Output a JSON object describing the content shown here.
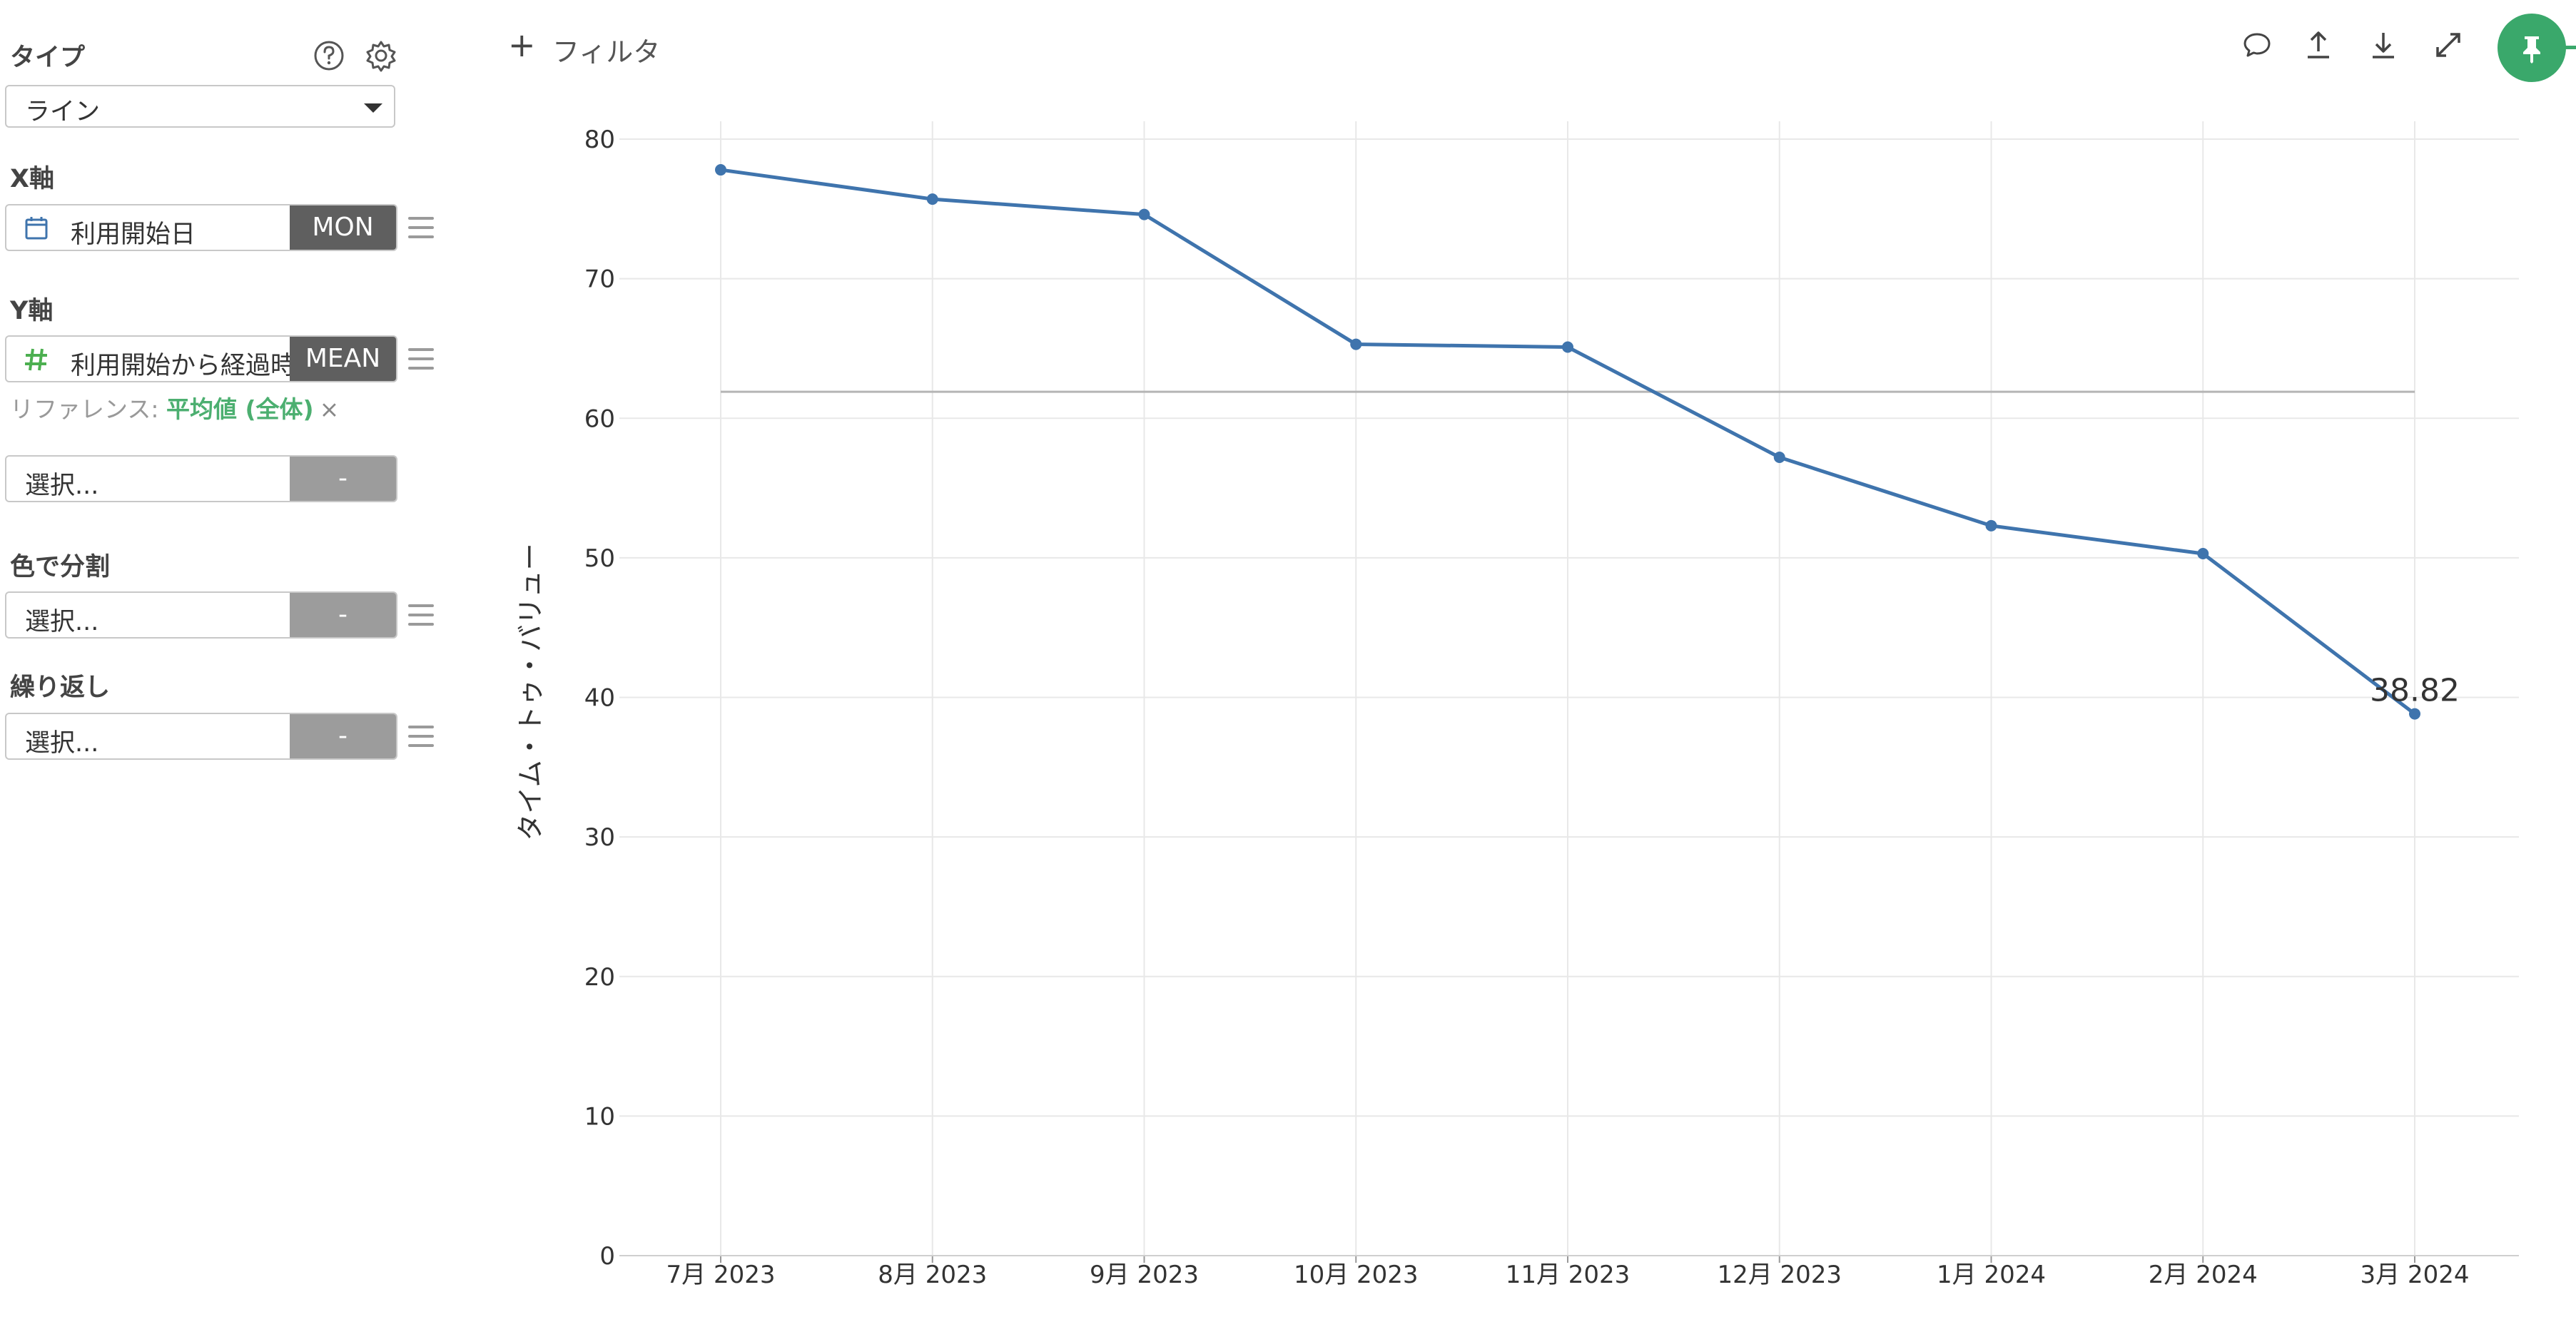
{
  "sidebar": {
    "type_label": "タイプ",
    "chart_type_value": "ライン",
    "x_axis_label": "X軸",
    "x_field": "利用開始日",
    "x_agg": "MON",
    "y_axis_label": "Y軸",
    "y_field": "利用開始から経過時",
    "y_agg": "MEAN",
    "reference_prefix": "リファレンス: ",
    "reference_value": "平均値 (全体)",
    "reference_remove": "×",
    "extra_select_placeholder": "選択...",
    "extra_select_agg": "-",
    "color_split_label": "色で分割",
    "color_select_placeholder": "選択...",
    "color_select_agg": "-",
    "repeat_label": "繰り返し",
    "repeat_select_placeholder": "選択...",
    "repeat_select_agg": "-"
  },
  "toolbar": {
    "filter_plus": "+",
    "filter_label": "フィルタ"
  },
  "colors": {
    "line": "#3f74ad",
    "accent_green": "#3aa86b",
    "reference_line": "#b5b5b5",
    "grid": "#e8e8e8"
  },
  "icons": {
    "help": "help-circle-icon",
    "settings": "gear-icon",
    "calendar": "calendar-icon",
    "numeric": "hash-icon",
    "comment": "comment-icon",
    "upload": "upload-icon",
    "download": "download-icon",
    "expand": "expand-icon",
    "pin": "pin-icon"
  },
  "chart_data": {
    "type": "line",
    "categories": [
      "7月 2023",
      "8月 2023",
      "9月 2023",
      "10月 2023",
      "11月 2023",
      "12月 2023",
      "1月 2024",
      "2月 2024",
      "3月 2024"
    ],
    "series": [
      {
        "values": [
          77.8,
          75.7,
          74.6,
          65.3,
          65.1,
          57.2,
          52.3,
          50.3,
          38.82
        ]
      }
    ],
    "reference_line": 61.9,
    "last_point_label": "38.82",
    "ylabel": "タイム・トゥ・バリュー",
    "xlabel": "",
    "ylim": [
      0,
      80
    ],
    "yticks": [
      0,
      10,
      20,
      30,
      40,
      50,
      60,
      70,
      80
    ],
    "grid": true
  }
}
